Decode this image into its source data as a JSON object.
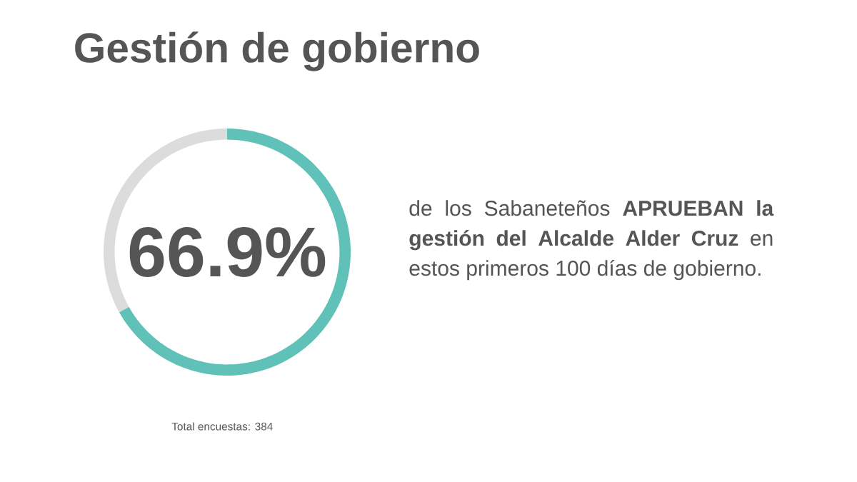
{
  "chart_data": {
    "type": "donut",
    "title": "Gestión de gobierno",
    "categories": [
      null,
      null
    ],
    "values": [
      66.9,
      33.1
    ],
    "colors": [
      "#5fc1b8",
      "#dcdcdc"
    ],
    "value_labels": [
      "66.9%",
      null
    ],
    "annotations": [
      "de los Sabaneteños **APRUEBAN la gestión del Alcalde Alder Cruz** en estos primeros 100 días de gobierno.",
      "Total encuestas: 384"
    ]
  }
}
